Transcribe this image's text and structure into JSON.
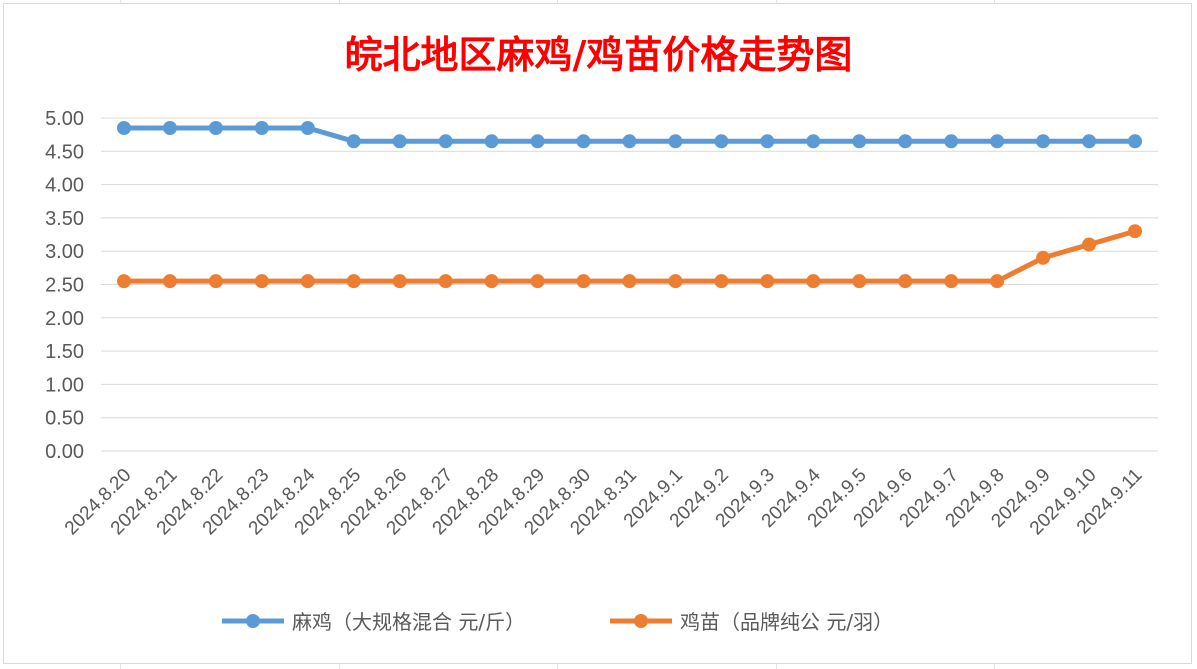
{
  "chart_data": {
    "type": "line",
    "title": "皖北地区麻鸡/鸡苗价格走势图",
    "categories": [
      "2024.8.20",
      "2024.8.21",
      "2024.8.22",
      "2024.8.23",
      "2024.8.24",
      "2024.8.25",
      "2024.8.26",
      "2024.8.27",
      "2024.8.28",
      "2024.8.29",
      "2024.8.30",
      "2024.8.31",
      "2024.9.1",
      "2024.9.2",
      "2024.9.3",
      "2024.9.4",
      "2024.9.5",
      "2024.9.6",
      "2024.9.7",
      "2024.9.8",
      "2024.9.9",
      "2024.9.10",
      "2024.9.11"
    ],
    "series": [
      {
        "name": "麻鸡（大规格混合 元/斤）",
        "color": "#5b9bd5",
        "values": [
          4.85,
          4.85,
          4.85,
          4.85,
          4.85,
          4.65,
          4.65,
          4.65,
          4.65,
          4.65,
          4.65,
          4.65,
          4.65,
          4.65,
          4.65,
          4.65,
          4.65,
          4.65,
          4.65,
          4.65,
          4.65,
          4.65,
          4.65
        ]
      },
      {
        "name": "鸡苗（品牌纯公 元/羽）",
        "color": "#ed7d31",
        "values": [
          2.55,
          2.55,
          2.55,
          2.55,
          2.55,
          2.55,
          2.55,
          2.55,
          2.55,
          2.55,
          2.55,
          2.55,
          2.55,
          2.55,
          2.55,
          2.55,
          2.55,
          2.55,
          2.55,
          2.55,
          2.9,
          3.1,
          3.3
        ]
      }
    ],
    "yticks": [
      "0.00",
      "0.50",
      "1.00",
      "1.50",
      "2.00",
      "2.50",
      "3.00",
      "3.50",
      "4.00",
      "4.50",
      "5.00"
    ],
    "ylim": [
      0,
      5
    ],
    "grid": true,
    "legend": "bottom"
  }
}
